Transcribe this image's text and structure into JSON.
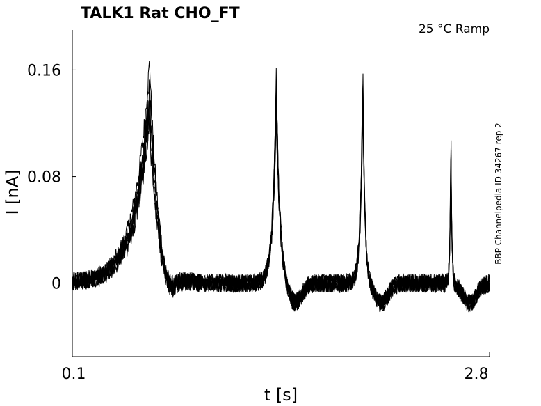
{
  "chart_data": {
    "type": "line",
    "title": "TALK1  Rat  CHO_FT",
    "condition": "25 °C  Ramp",
    "side_note": "BBP Channelpedia ID 34267 rep 2",
    "xlabel": "t [s]",
    "ylabel": "I [nA]",
    "xlim": [
      0.1,
      2.8
    ],
    "ylim": [
      -0.055,
      0.19
    ],
    "xticks": [
      0.1,
      2.8
    ],
    "xtick_labels": [
      "0.1",
      "2.8"
    ],
    "yticks": [
      0,
      0.08,
      0.16
    ],
    "ytick_labels": [
      "0",
      "0.08",
      "0.16"
    ],
    "grid": false,
    "legend": "none",
    "sweep_count": 6,
    "series_color": "#000000",
    "series_shape": {
      "baseline": 0.0,
      "noise_amplitude": 0.007,
      "peaks": [
        {
          "t": 0.6,
          "peak": 0.12,
          "max": 0.167,
          "rise_width": 0.22,
          "fall_width": 0.12
        },
        {
          "t": 1.42,
          "peak": 0.13,
          "max": 0.155,
          "rise_width": 0.05,
          "fall_width": 0.05
        },
        {
          "t": 1.98,
          "peak": 0.135,
          "max": 0.155,
          "rise_width": 0.035,
          "fall_width": 0.03
        },
        {
          "t": 2.55,
          "peak": 0.11,
          "max": 0.114,
          "rise_width": 0.012,
          "fall_width": 0.012
        }
      ]
    }
  }
}
